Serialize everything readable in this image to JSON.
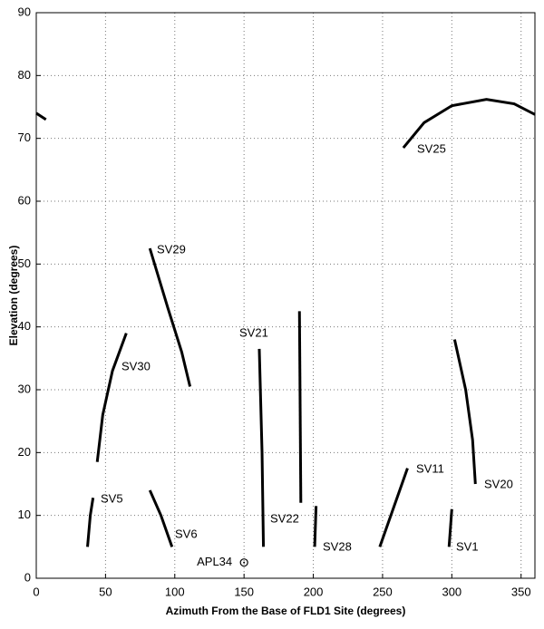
{
  "chart_data": {
    "type": "line",
    "xlabel": "Azimuth From the Base of FLD1 Site (degrees)",
    "ylabel": "Elevation (degrees)",
    "xlim": [
      0,
      360
    ],
    "xticks": [
      0,
      50,
      100,
      150,
      200,
      250,
      300,
      350
    ],
    "ylim": [
      0,
      90
    ],
    "yticks": [
      0,
      10,
      20,
      30,
      40,
      50,
      60,
      70,
      80,
      90
    ],
    "grid": true,
    "series": [
      {
        "name": "SV25",
        "color": "#000000",
        "x": [
          265,
          280,
          300,
          325,
          345,
          360,
          null,
          0,
          7
        ],
        "y": [
          68.5,
          72.5,
          75.2,
          76.2,
          75.5,
          73.8,
          null,
          74,
          73
        ]
      },
      {
        "name": "SV29",
        "color": "#000000",
        "x": [
          82,
          95,
          105,
          111
        ],
        "y": [
          52.5,
          43,
          36,
          30.5
        ]
      },
      {
        "name": "SV30",
        "color": "#000000",
        "x": [
          44,
          48,
          55,
          65
        ],
        "y": [
          18.5,
          26,
          33,
          39
        ]
      },
      {
        "name": "SV5",
        "color": "#000000",
        "x": [
          37,
          39,
          41
        ],
        "y": [
          5,
          10,
          12.8
        ]
      },
      {
        "name": "SV6",
        "color": "#000000",
        "x": [
          82,
          90,
          98
        ],
        "y": [
          14,
          10,
          5
        ]
      },
      {
        "name": "SV21",
        "color": "#000000",
        "x": [
          161,
          163,
          164
        ],
        "y": [
          36.5,
          20,
          5
        ]
      },
      {
        "name": "SV22",
        "color": "#000000",
        "x": [
          190,
          191
        ],
        "y": [
          42.5,
          12
        ]
      },
      {
        "name": "SV28",
        "color": "#000000",
        "x": [
          202,
          201
        ],
        "y": [
          11.5,
          5
        ]
      },
      {
        "name": "SV11",
        "color": "#000000",
        "x": [
          248,
          256,
          268
        ],
        "y": [
          5,
          10,
          17.5
        ]
      },
      {
        "name": "SV1",
        "color": "#000000",
        "x": [
          300,
          298
        ],
        "y": [
          11,
          5
        ]
      },
      {
        "name": "SV20",
        "color": "#000000",
        "x": [
          302,
          310,
          315,
          317
        ],
        "y": [
          38,
          30,
          22,
          15
        ]
      }
    ],
    "markers": [
      {
        "name": "APL34",
        "x": 150,
        "y": 2.5
      }
    ]
  }
}
